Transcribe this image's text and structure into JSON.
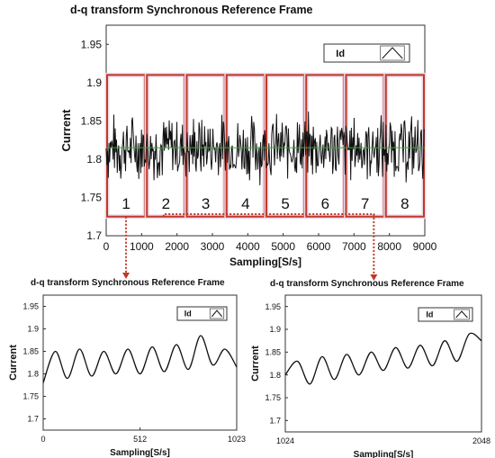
{
  "chart_data": [
    {
      "type": "line",
      "title": "d-q transform Synchronous Reference Frame",
      "xlabel": "Sampling[S/s]",
      "ylabel": "Current",
      "xlim": [
        0,
        9000
      ],
      "ylim": [
        1.7,
        1.975
      ],
      "x_ticks": [
        "0",
        "1000",
        "2000",
        "3000",
        "4000",
        "5000",
        "6000",
        "7000",
        "8000",
        "9000"
      ],
      "y_ticks": [
        "1.7",
        "1.75",
        "1.8",
        "1.85",
        "1.9",
        "1.95"
      ],
      "grid": false,
      "legend": {
        "position": "top-right",
        "entries": [
          "Id"
        ]
      },
      "series": [
        {
          "name": "Id",
          "mean": 1.815,
          "amplitude": 0.05,
          "x_range": [
            0,
            9000
          ]
        }
      ],
      "mean_line": {
        "y": 1.815,
        "color": "#33aa33"
      },
      "segments": {
        "labels": [
          "1",
          "2",
          "3",
          "4",
          "5",
          "6",
          "7",
          "8"
        ],
        "x_bounds": [
          0,
          1125,
          2250,
          3375,
          4500,
          5625,
          6750,
          7875,
          9000
        ],
        "y_range": [
          1.725,
          1.91
        ],
        "border_color": "#c0392b"
      }
    },
    {
      "type": "line",
      "title": "d-q transform Synchronous Reference Frame",
      "xlabel": "Sampling[S/s]",
      "ylabel": "Current",
      "xlim": [
        0,
        1023
      ],
      "ylim": [
        1.675,
        1.975
      ],
      "x_ticks": [
        "0",
        "512",
        "1023"
      ],
      "y_ticks": [
        "1.7",
        "1.75",
        "1.8",
        "1.85",
        "1.9",
        "1.95"
      ],
      "grid": false,
      "legend": {
        "position": "top-right",
        "entries": [
          "Id"
        ]
      },
      "series": [
        {
          "name": "Id",
          "x": [
            0,
            64,
            128,
            192,
            256,
            320,
            384,
            448,
            512,
            576,
            640,
            704,
            768,
            832,
            896,
            960,
            1023
          ],
          "y": [
            1.78,
            1.85,
            1.79,
            1.855,
            1.795,
            1.85,
            1.8,
            1.855,
            1.8,
            1.86,
            1.805,
            1.865,
            1.81,
            1.885,
            1.82,
            1.855,
            1.815
          ]
        }
      ]
    },
    {
      "type": "line",
      "title": "d-q transform Synchronous Reference Frame",
      "xlabel": "Sampling[S/s]",
      "ylabel": "Current",
      "xlim": [
        1024,
        2048
      ],
      "ylim": [
        1.675,
        1.975
      ],
      "x_ticks": [
        "1024",
        "2048"
      ],
      "y_ticks": [
        "1.7",
        "1.75",
        "1.8",
        "1.85",
        "1.9",
        "1.95"
      ],
      "grid": false,
      "legend": {
        "position": "top-right",
        "entries": [
          "Id"
        ]
      },
      "series": [
        {
          "name": "Id",
          "x": [
            1024,
            1088,
            1152,
            1216,
            1280,
            1344,
            1408,
            1472,
            1536,
            1600,
            1664,
            1728,
            1792,
            1856,
            1920,
            1984,
            2048
          ],
          "y": [
            1.8,
            1.83,
            1.78,
            1.84,
            1.79,
            1.845,
            1.8,
            1.85,
            1.81,
            1.86,
            1.815,
            1.865,
            1.82,
            1.875,
            1.83,
            1.89,
            1.875
          ]
        }
      ]
    }
  ],
  "connectors": {
    "color": "#c0392b"
  },
  "legend_icon": "peak-line-icon"
}
